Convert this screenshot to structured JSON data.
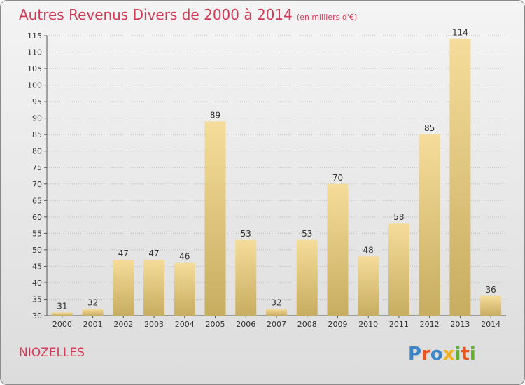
{
  "title": "Autres Revenus Divers de 2000 à 2014",
  "subtitle": "(en milliers d'€)",
  "place": "NIOZELLES",
  "logo": {
    "letters": [
      "P",
      "r",
      "o",
      "x",
      "i",
      "t",
      "i"
    ],
    "colors": [
      "#3a86c8",
      "#e8541e",
      "#3a86c8",
      "#f2b01e",
      "#63b033",
      "#e8541e",
      "#63b033"
    ]
  },
  "colors": {
    "title": "#d43a55",
    "bar_top": "#f5dc9a",
    "bar_bottom": "#c7ad60",
    "grid": "#bbbbbb"
  },
  "chart_data": {
    "type": "bar",
    "categories": [
      "2000",
      "2001",
      "2002",
      "2003",
      "2004",
      "2005",
      "2006",
      "2007",
      "2008",
      "2009",
      "2010",
      "2011",
      "2012",
      "2013",
      "2014"
    ],
    "values": [
      31,
      32,
      47,
      47,
      46,
      89,
      53,
      32,
      53,
      70,
      48,
      58,
      85,
      114,
      36
    ],
    "ylim": [
      30,
      115
    ],
    "yticks": [
      30,
      35,
      40,
      45,
      50,
      55,
      60,
      65,
      70,
      75,
      80,
      85,
      90,
      95,
      100,
      105,
      110,
      115
    ],
    "grid": true,
    "data_labels": true
  }
}
